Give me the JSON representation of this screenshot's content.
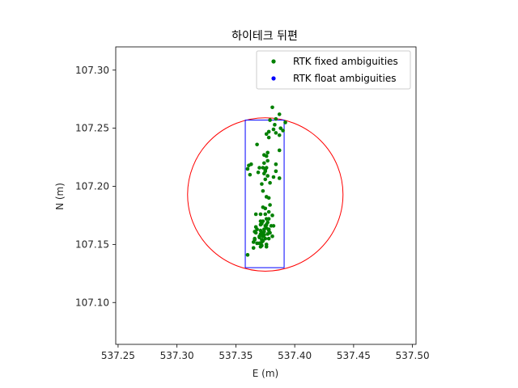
{
  "chart_data": {
    "type": "scatter",
    "title": "하이테크 뒤편",
    "xlabel": "E (m)",
    "ylabel": "N (m)",
    "xlim": [
      537.248,
      537.503
    ],
    "ylim": [
      107.064,
      107.32
    ],
    "xticks": [
      "537.25",
      "537.30",
      "537.35",
      "537.40",
      "537.45",
      "537.50"
    ],
    "xtick_values": [
      537.25,
      537.3,
      537.35,
      537.4,
      537.45,
      537.5
    ],
    "yticks": [
      "107.10",
      "107.15",
      "107.20",
      "107.25",
      "107.30"
    ],
    "ytick_values": [
      107.1,
      107.15,
      107.2,
      107.25,
      107.3
    ],
    "grid": false,
    "legend_position": "top-right",
    "series": [
      {
        "name": "RTK fixed ambiguities",
        "color": "#008000",
        "x": [
          537.381,
          537.387,
          537.384,
          537.392,
          537.379,
          537.383,
          537.388,
          537.382,
          537.378,
          537.376,
          537.387,
          537.39,
          537.384,
          537.378,
          537.387,
          537.377,
          537.368,
          537.376,
          537.374,
          537.377,
          537.363,
          537.374,
          537.384,
          537.376,
          537.384,
          537.37,
          537.375,
          537.387,
          537.36,
          537.361,
          537.373,
          537.375,
          537.369,
          537.374,
          537.362,
          537.377,
          537.382,
          537.375,
          537.379,
          537.372,
          537.373,
          537.376,
          537.378,
          537.379,
          537.373,
          537.375,
          537.378,
          537.367,
          537.371,
          537.375,
          537.381,
          537.378,
          537.376,
          537.373,
          537.372,
          537.377,
          537.376,
          537.38,
          537.375,
          537.376,
          537.374,
          537.382,
          537.378,
          537.374,
          537.371,
          537.373,
          537.368,
          537.379,
          537.374,
          537.377,
          537.381,
          537.373,
          537.375,
          537.378,
          537.373,
          537.372,
          537.37,
          537.376,
          537.365,
          537.372,
          537.368,
          537.376,
          537.371,
          537.365,
          537.367,
          537.371,
          537.366,
          537.37,
          537.374,
          537.378,
          537.371,
          537.367,
          537.366,
          537.372,
          537.37,
          537.372,
          537.366,
          537.371,
          537.36
        ],
        "y": [
          107.268,
          107.262,
          107.258,
          107.255,
          107.257,
          107.253,
          107.25,
          107.249,
          107.247,
          107.245,
          107.244,
          107.248,
          107.246,
          107.242,
          107.231,
          107.229,
          107.236,
          107.226,
          107.227,
          107.222,
          107.219,
          107.22,
          107.219,
          107.216,
          107.213,
          107.216,
          107.214,
          107.207,
          107.215,
          107.218,
          107.216,
          107.213,
          107.212,
          107.211,
          107.21,
          107.209,
          107.208,
          107.206,
          107.203,
          107.202,
          107.196,
          107.191,
          107.19,
          107.184,
          107.182,
          107.181,
          107.178,
          107.176,
          107.176,
          107.176,
          107.175,
          107.172,
          107.172,
          107.17,
          107.168,
          107.169,
          107.167,
          107.166,
          107.166,
          107.164,
          107.163,
          107.166,
          107.163,
          107.161,
          107.162,
          107.16,
          107.163,
          107.16,
          107.158,
          107.159,
          107.157,
          107.157,
          107.155,
          107.155,
          107.153,
          107.152,
          107.151,
          107.15,
          107.152,
          107.149,
          107.151,
          107.148,
          107.148,
          107.147,
          107.16,
          107.17,
          107.155,
          107.156,
          107.158,
          107.162,
          107.167,
          107.165,
          107.154,
          107.154,
          107.157,
          107.16,
          107.161,
          107.159,
          107.141
        ]
      },
      {
        "name": "RTK float ambiguities",
        "color": "#0000ff",
        "x": [],
        "y": []
      }
    ],
    "circle": {
      "color": "#ff0000",
      "center": [
        537.375,
        107.193
      ],
      "radius": 0.066
    },
    "rectangle": {
      "color": "#0000ff",
      "x": [
        537.358,
        537.391
      ],
      "y": [
        107.13,
        107.257
      ]
    }
  }
}
